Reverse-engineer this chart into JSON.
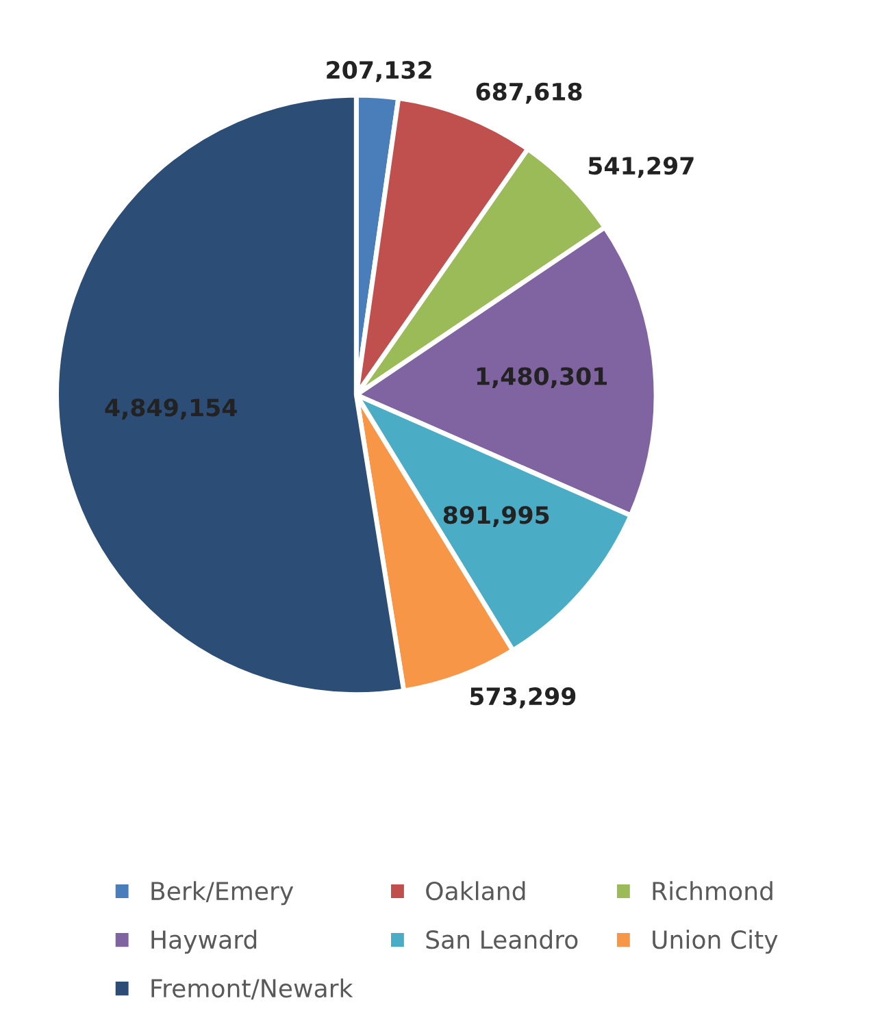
{
  "chart_data": {
    "type": "pie",
    "categories": [
      "Berk/Emery",
      "Oakland",
      "Richmond",
      "Hayward",
      "San Leandro",
      "Union City",
      "Fremont/Newark"
    ],
    "values": [
      207132,
      687618,
      541297,
      1480301,
      891995,
      573299,
      4849154
    ],
    "colors": [
      "#4a7ebb",
      "#c0504d",
      "#9bbb59",
      "#8064a2",
      "#4bacc6",
      "#f79646",
      "#2c4d75"
    ],
    "value_labels": [
      "207,132",
      "687,618",
      "541,297",
      "1,480,301",
      "891,995",
      "573,299",
      "4,849,154"
    ],
    "legend": "bottom"
  }
}
